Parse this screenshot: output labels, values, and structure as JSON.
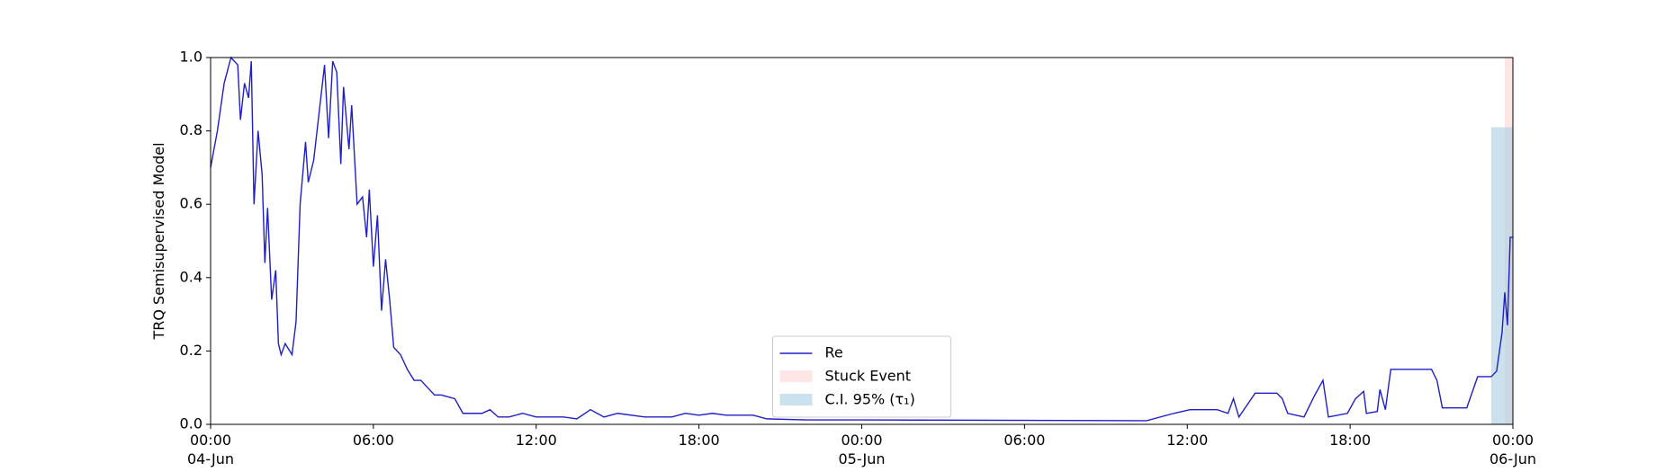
{
  "chart_data": {
    "type": "line",
    "ylabel": "TRQ Semisupervised Model",
    "ylim": [
      0,
      1
    ],
    "yticks": [
      {
        "value": 0,
        "label": "0.0"
      },
      0.2,
      0.4,
      0.6,
      0.8,
      {
        "value": 1,
        "label": "1.0"
      }
    ],
    "xlim": [
      "1900-06-04T00:00",
      "1900-06-06T00:00"
    ],
    "xticks": [
      {
        "value": "1900-06-04T00:00",
        "label": "00:00\n04-Jun\n1900"
      },
      {
        "value": "1900-06-04T06:00",
        "label": "06:00"
      },
      {
        "value": "1900-06-04T12:00",
        "label": "12:00"
      },
      {
        "value": "1900-06-04T18:00",
        "label": "18:00"
      },
      {
        "value": "1900-06-05T00:00",
        "label": "00:00\n05-Jun"
      },
      {
        "value": "1900-06-05T06:00",
        "label": "06:00"
      },
      {
        "value": "1900-06-05T12:00",
        "label": "12:00"
      },
      {
        "value": "1900-06-05T18:00",
        "label": "18:00"
      },
      {
        "value": "1900-06-06T00:00",
        "label": "00:00\n06-Jun"
      }
    ],
    "legend": "lower center",
    "spans": [
      {
        "name": "Stuck Event",
        "color": "#ffd6d6",
        "x": [
          "1900-06-05T23:42",
          "1900-06-06T00:00"
        ],
        "y": [
          0,
          1
        ]
      },
      {
        "name": "C.I. 95% (τ₁)",
        "color": "#aacde3",
        "x": [
          "1900-06-05T23:12",
          "1900-06-06T00:00"
        ],
        "y": [
          0,
          0.81
        ]
      }
    ],
    "series": [
      {
        "name": "Re",
        "color": "#1f1fc8",
        "x": [
          "1900-06-04T00:00",
          "1900-06-04T00:15",
          "1900-06-04T00:30",
          "1900-06-04T00:45",
          "1900-06-04T01:00",
          "1900-06-04T01:06",
          "1900-06-04T01:15",
          "1900-06-04T01:24",
          "1900-06-04T01:30",
          "1900-06-04T01:36",
          "1900-06-04T01:45",
          "1900-06-04T01:54",
          "1900-06-04T02:00",
          "1900-06-04T02:06",
          "1900-06-04T02:15",
          "1900-06-04T02:24",
          "1900-06-04T02:30",
          "1900-06-04T02:36",
          "1900-06-04T02:45",
          "1900-06-04T03:00",
          "1900-06-04T03:09",
          "1900-06-04T03:18",
          "1900-06-04T03:30",
          "1900-06-04T03:36",
          "1900-06-04T03:48",
          "1900-06-04T04:00",
          "1900-06-04T04:12",
          "1900-06-04T04:21",
          "1900-06-04T04:30",
          "1900-06-04T04:39",
          "1900-06-04T04:48",
          "1900-06-04T04:54",
          "1900-06-04T05:06",
          "1900-06-04T05:12",
          "1900-06-04T05:24",
          "1900-06-04T05:36",
          "1900-06-04T05:45",
          "1900-06-04T05:51",
          "1900-06-04T06:00",
          "1900-06-04T06:09",
          "1900-06-04T06:18",
          "1900-06-04T06:27",
          "1900-06-04T06:36",
          "1900-06-04T06:45",
          "1900-06-04T07:00",
          "1900-06-04T07:15",
          "1900-06-04T07:30",
          "1900-06-04T07:45",
          "1900-06-04T08:00",
          "1900-06-04T08:15",
          "1900-06-04T08:30",
          "1900-06-04T09:00",
          "1900-06-04T09:18",
          "1900-06-04T10:00",
          "1900-06-04T10:18",
          "1900-06-04T10:36",
          "1900-06-04T11:00",
          "1900-06-04T11:30",
          "1900-06-04T12:00",
          "1900-06-04T13:00",
          "1900-06-04T13:30",
          "1900-06-04T14:00",
          "1900-06-04T14:30",
          "1900-06-04T15:00",
          "1900-06-04T16:00",
          "1900-06-04T17:00",
          "1900-06-04T17:30",
          "1900-06-04T18:00",
          "1900-06-04T18:30",
          "1900-06-04T19:00",
          "1900-06-04T20:00",
          "1900-06-04T20:30",
          "1900-06-04T22:00",
          "1900-06-05T00:00",
          "1900-06-05T10:30",
          "1900-06-05T11:30",
          "1900-06-05T12:06",
          "1900-06-05T13:06",
          "1900-06-05T13:30",
          "1900-06-05T13:42",
          "1900-06-05T13:54",
          "1900-06-05T14:30",
          "1900-06-05T15:18",
          "1900-06-05T15:30",
          "1900-06-05T15:42",
          "1900-06-05T16:18",
          "1900-06-05T16:42",
          "1900-06-05T17:00",
          "1900-06-05T17:12",
          "1900-06-05T17:54",
          "1900-06-05T18:12",
          "1900-06-05T18:30",
          "1900-06-05T18:36",
          "1900-06-05T19:00",
          "1900-06-05T19:06",
          "1900-06-05T19:18",
          "1900-06-05T19:30",
          "1900-06-05T21:00",
          "1900-06-05T21:12",
          "1900-06-05T21:24",
          "1900-06-05T22:18",
          "1900-06-05T22:42",
          "1900-06-05T23:12",
          "1900-06-05T23:24",
          "1900-06-05T23:36",
          "1900-06-05T23:42",
          "1900-06-05T23:48",
          "1900-06-05T23:54",
          "1900-06-06T00:00"
        ],
        "values": [
          0.7,
          0.8,
          0.93,
          1.0,
          0.98,
          0.83,
          0.93,
          0.89,
          0.99,
          0.6,
          0.8,
          0.68,
          0.44,
          0.59,
          0.34,
          0.42,
          0.22,
          0.19,
          0.22,
          0.19,
          0.28,
          0.6,
          0.77,
          0.66,
          0.72,
          0.85,
          0.98,
          0.78,
          0.99,
          0.96,
          0.71,
          0.92,
          0.75,
          0.87,
          0.6,
          0.62,
          0.51,
          0.64,
          0.43,
          0.57,
          0.31,
          0.45,
          0.34,
          0.21,
          0.19,
          0.15,
          0.12,
          0.12,
          0.1,
          0.08,
          0.08,
          0.07,
          0.03,
          0.03,
          0.04,
          0.02,
          0.02,
          0.03,
          0.02,
          0.02,
          0.015,
          0.04,
          0.02,
          0.03,
          0.02,
          0.02,
          0.03,
          0.025,
          0.03,
          0.025,
          0.025,
          0.015,
          0.012,
          0.012,
          0.01,
          0.03,
          0.04,
          0.04,
          0.03,
          0.07,
          0.02,
          0.085,
          0.085,
          0.07,
          0.03,
          0.02,
          0.08,
          0.12,
          0.02,
          0.03,
          0.07,
          0.09,
          0.03,
          0.035,
          0.095,
          0.04,
          0.15,
          0.15,
          0.12,
          0.045,
          0.045,
          0.13,
          0.13,
          0.145,
          0.25,
          0.36,
          0.27,
          0.51,
          0.51
        ]
      }
    ]
  }
}
